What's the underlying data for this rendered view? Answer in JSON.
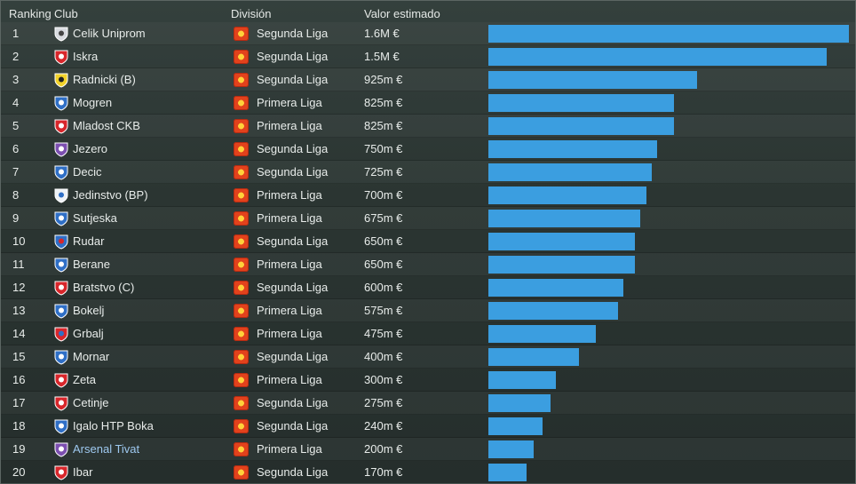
{
  "header": {
    "ranking": "Ranking",
    "club": "Club",
    "division": "División",
    "value": "Valor estimado"
  },
  "colors": {
    "bar": "#3b9ee0",
    "highlight_club": "#9ec9f0"
  },
  "chart_data": {
    "type": "bar",
    "orientation": "horizontal",
    "categories": [
      "Celik Uniprom",
      "Iskra",
      "Radnicki (B)",
      "Mogren",
      "Mladost CKB",
      "Jezero",
      "Decic",
      "Jedinstvo (BP)",
      "Sutjeska",
      "Rudar",
      "Berane",
      "Bratstvo (C)",
      "Bokelj",
      "Grbalj",
      "Mornar",
      "Zeta",
      "Cetinje",
      "Igalo HTP Boka",
      "Arsenal Tivat",
      "Ibar"
    ],
    "series": [
      {
        "values": [
          1600000,
          1500000,
          925000,
          825000,
          825000,
          750000,
          725000,
          700000,
          675000,
          650000,
          650000,
          600000,
          575000,
          475000,
          400000,
          300000,
          275000,
          240000,
          200000,
          170000
        ]
      }
    ],
    "xlim": [
      0,
      1600000
    ]
  },
  "rows": [
    {
      "rank": "1",
      "club": "Celik Uniprom",
      "division": "Segunda Liga",
      "value": "1.6M €",
      "crest": "horse-crest-icon",
      "highlight": false
    },
    {
      "rank": "2",
      "club": "Iskra",
      "division": "Segunda Liga",
      "value": "1.5M €",
      "crest": "red-round-crest-icon",
      "highlight": false
    },
    {
      "rank": "3",
      "club": "Radnicki (B)",
      "division": "Segunda Liga",
      "value": "925m €",
      "crest": "yellow-shield-crest-icon",
      "highlight": false
    },
    {
      "rank": "4",
      "club": "Mogren",
      "division": "Primera Liga",
      "value": "825m €",
      "crest": "blue-shield-crest-icon",
      "highlight": false
    },
    {
      "rank": "5",
      "club": "Mladost CKB",
      "division": "Primera Liga",
      "value": "825m €",
      "crest": "red-round-crest-icon",
      "highlight": false
    },
    {
      "rank": "6",
      "club": "Jezero",
      "division": "Segunda Liga",
      "value": "750m €",
      "crest": "purple-shield-crest-icon",
      "highlight": false
    },
    {
      "rank": "7",
      "club": "Decic",
      "division": "Segunda Liga",
      "value": "725m €",
      "crest": "blue-shield-crest-icon",
      "highlight": false
    },
    {
      "rank": "8",
      "club": "Jedinstvo (BP)",
      "division": "Primera Liga",
      "value": "700m €",
      "crest": "white-shield-crest-icon",
      "highlight": false
    },
    {
      "rank": "9",
      "club": "Sutjeska",
      "division": "Primera Liga",
      "value": "675m €",
      "crest": "blue-shield-crest-icon",
      "highlight": false
    },
    {
      "rank": "10",
      "club": "Rudar",
      "division": "Segunda Liga",
      "value": "650m €",
      "crest": "blue-red-crest-icon",
      "highlight": false
    },
    {
      "rank": "11",
      "club": "Berane",
      "division": "Primera Liga",
      "value": "650m €",
      "crest": "blue-shield-crest-icon",
      "highlight": false
    },
    {
      "rank": "12",
      "club": "Bratstvo (C)",
      "division": "Segunda Liga",
      "value": "600m €",
      "crest": "red-round-crest-icon",
      "highlight": false
    },
    {
      "rank": "13",
      "club": "Bokelj",
      "division": "Primera Liga",
      "value": "575m €",
      "crest": "blue-shield-crest-icon",
      "highlight": false
    },
    {
      "rank": "14",
      "club": "Grbalj",
      "division": "Primera Liga",
      "value": "475m €",
      "crest": "red-blue-crest-icon",
      "highlight": false
    },
    {
      "rank": "15",
      "club": "Mornar",
      "division": "Segunda Liga",
      "value": "400m €",
      "crest": "blue-shield-crest-icon",
      "highlight": false
    },
    {
      "rank": "16",
      "club": "Zeta",
      "division": "Primera Liga",
      "value": "300m €",
      "crest": "red-shield-crest-icon",
      "highlight": false
    },
    {
      "rank": "17",
      "club": "Cetinje",
      "division": "Segunda Liga",
      "value": "275m €",
      "crest": "red-shield-crest-icon",
      "highlight": false
    },
    {
      "rank": "18",
      "club": "Igalo HTP Boka",
      "division": "Segunda Liga",
      "value": "240m €",
      "crest": "blue-shield-crest-icon",
      "highlight": false
    },
    {
      "rank": "19",
      "club": "Arsenal Tivat",
      "division": "Primera Liga",
      "value": "200m €",
      "crest": "purple-shield-crest-icon",
      "highlight": true
    },
    {
      "rank": "20",
      "club": "Ibar",
      "division": "Segunda Liga",
      "value": "170m €",
      "crest": "red-shield-crest-icon",
      "highlight": false
    }
  ]
}
